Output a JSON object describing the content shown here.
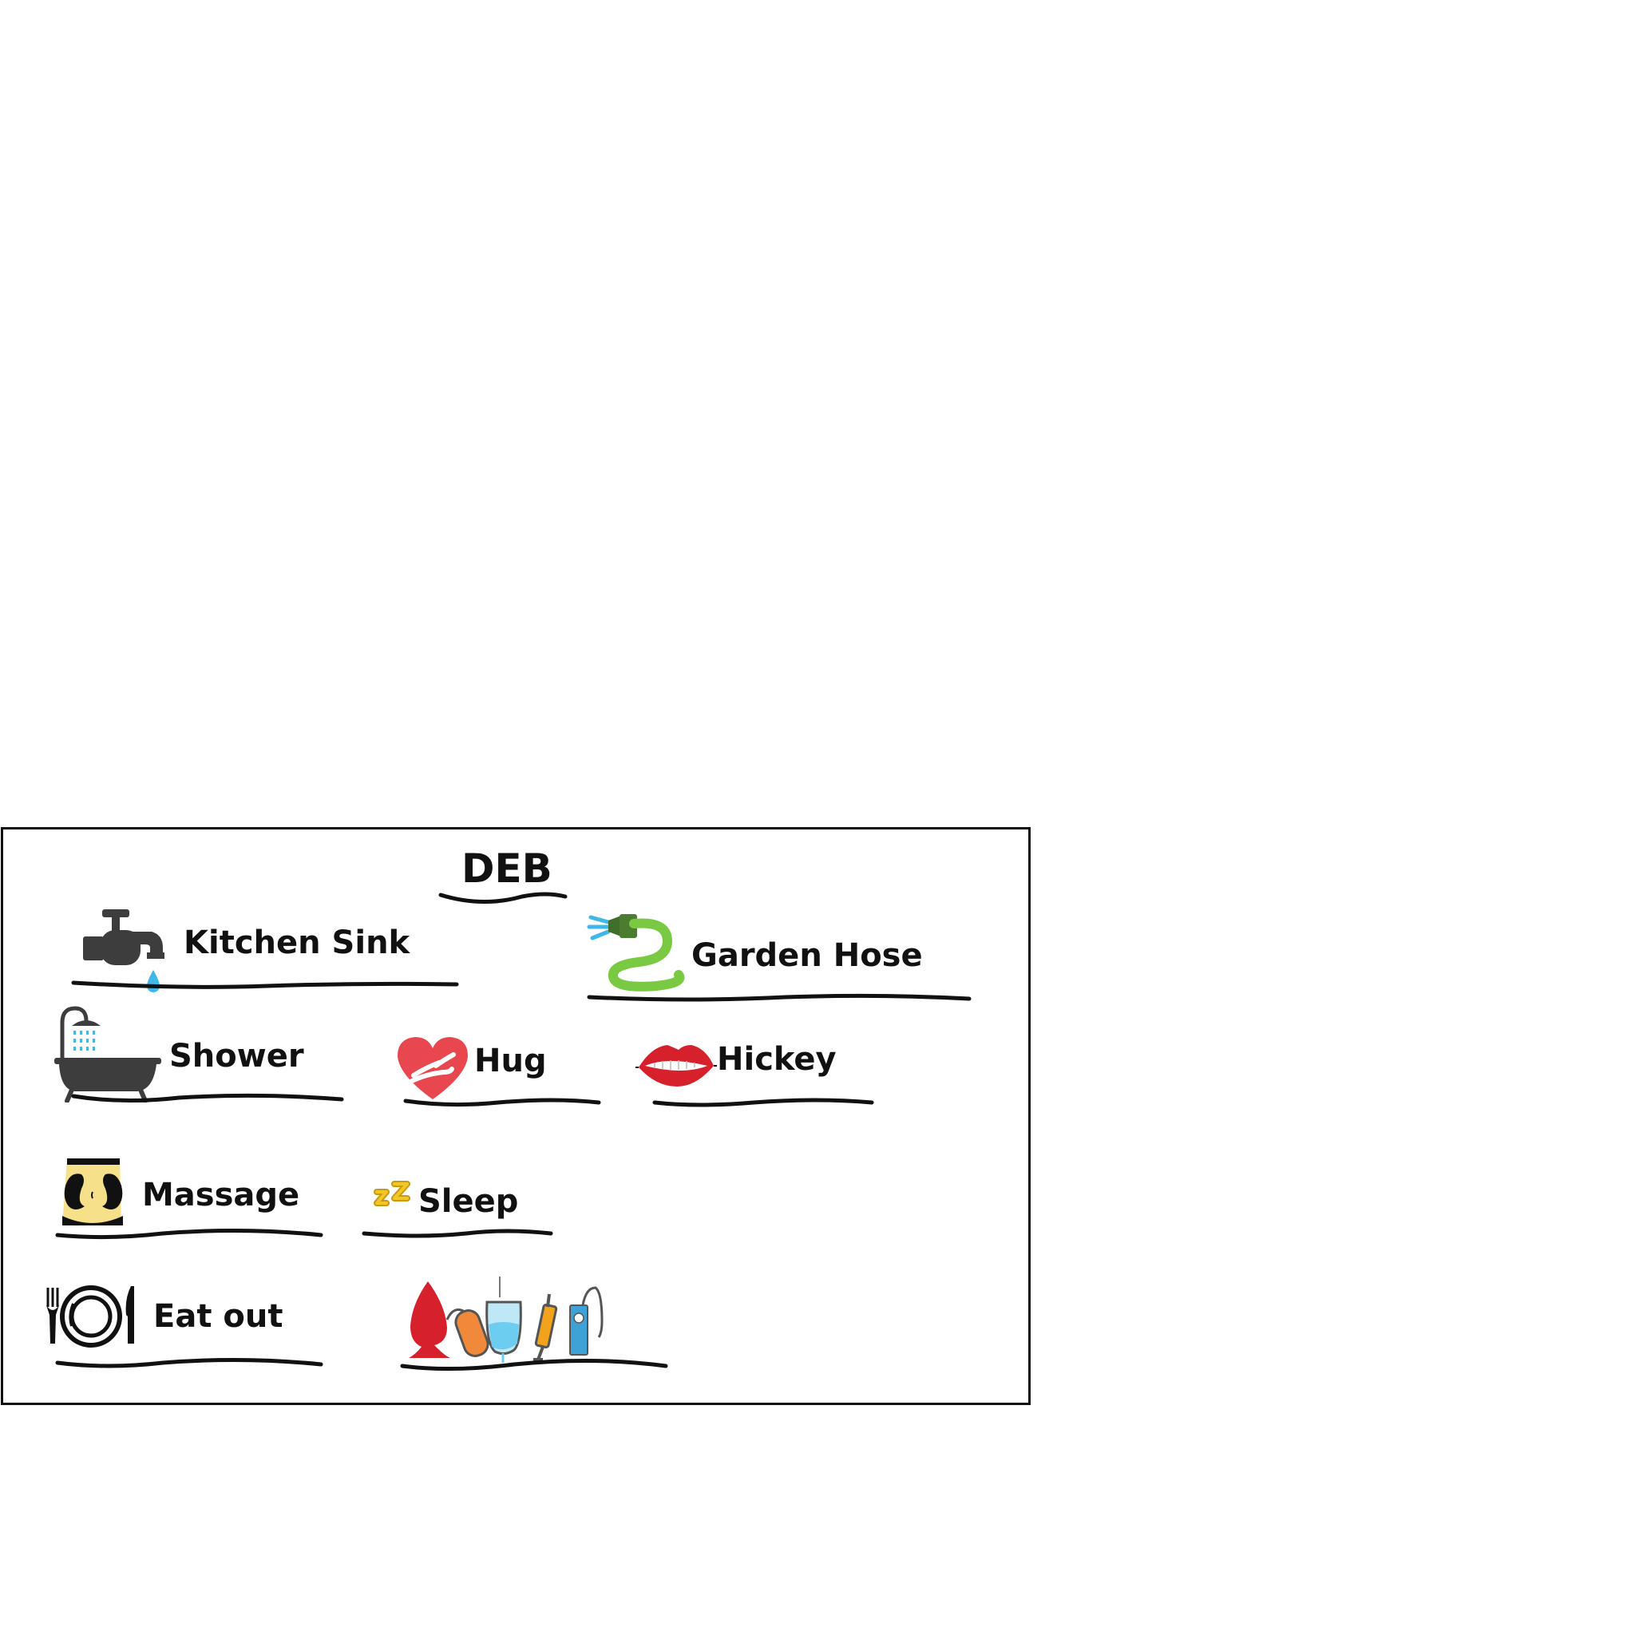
{
  "board": {
    "title": "DEB",
    "items": [
      {
        "label": "Kitchen Sink",
        "icon": "faucet-icon"
      },
      {
        "label": "Garden Hose",
        "icon": "garden-hose-icon"
      },
      {
        "label": "Shower",
        "icon": "bathtub-shower-icon"
      },
      {
        "label": "Hug",
        "icon": "heart-hug-icon"
      },
      {
        "label": "Hickey",
        "icon": "lips-bite-icon"
      },
      {
        "label": "Massage",
        "icon": "massage-hands-icon"
      },
      {
        "label": "Sleep",
        "icon": "zzz-icon"
      },
      {
        "label": "Eat out",
        "icon": "plate-fork-knife-icon"
      },
      {
        "label": "",
        "icon": "anal-toys-enema-icon"
      }
    ]
  },
  "colors": {
    "ink": "#111111",
    "water": "#3fb7e8",
    "hose": "#7ac943",
    "heart": "#e8474f",
    "lips": "#d6202c",
    "zzz": "#f3c623",
    "skin": "#f7e08a"
  }
}
